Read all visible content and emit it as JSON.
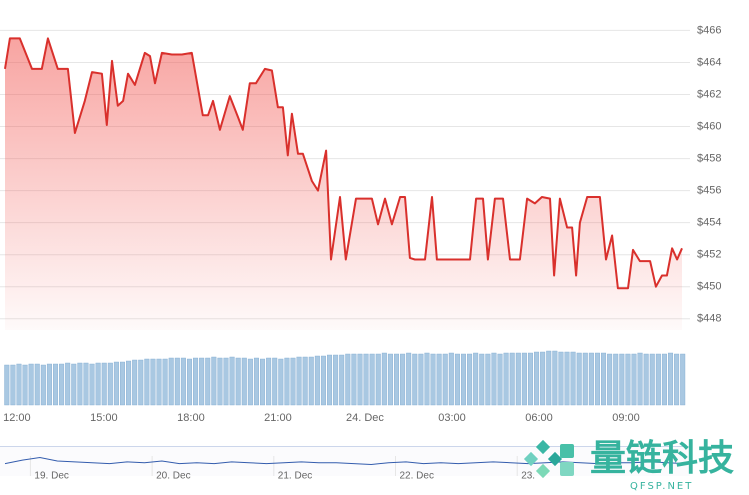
{
  "chart_data": [
    {
      "type": "line",
      "color": "#d9302c",
      "area": true,
      "x": [
        -0.41,
        -0.24,
        0.1,
        0.52,
        0.86,
        1.07,
        1.41,
        1.76,
        2,
        2.34,
        2.59,
        2.93,
        3.1,
        3.28,
        3.48,
        3.66,
        3.83,
        4.07,
        4.41,
        4.59,
        4.76,
        5,
        5.34,
        5.69,
        6.03,
        6.41,
        6.59,
        6.76,
        7,
        7.34,
        7.62,
        7.79,
        8.03,
        8.24,
        8.55,
        8.79,
        9,
        9.17,
        9.34,
        9.48,
        9.69,
        9.86,
        10.17,
        10.38,
        10.66,
        10.83,
        11.14,
        11.34,
        11.69,
        12.24,
        12.45,
        12.69,
        12.93,
        13.21,
        13.38,
        13.55,
        13.72,
        14.07,
        14.31,
        14.48,
        15.62,
        15.83,
        16.07,
        16.24,
        16.48,
        16.76,
        17,
        17.34,
        17.59,
        17.86,
        18.1,
        18.38,
        18.52,
        18.72,
        18.97,
        19.14,
        19.28,
        19.41,
        19.66,
        20.1,
        20.31,
        20.52,
        20.72,
        21.07,
        21.24,
        21.48,
        21.83,
        22.03,
        22.24,
        22.41,
        22.59,
        22.76,
        22.93
      ],
      "values": [
        463.6,
        465.5,
        465.5,
        463.6,
        463.6,
        465.5,
        463.6,
        463.6,
        459.6,
        461.6,
        463.4,
        463.3,
        460.1,
        464.1,
        461.3,
        461.6,
        463.3,
        462.6,
        464.6,
        464.4,
        462.7,
        464.6,
        464.5,
        464.5,
        464.6,
        460.7,
        460.7,
        461.6,
        459.8,
        461.9,
        460.6,
        459.8,
        462.7,
        462.7,
        463.6,
        463.5,
        461.2,
        461.2,
        458.2,
        460.8,
        458.3,
        458.3,
        456.6,
        456.0,
        458.5,
        451.7,
        455.6,
        451.7,
        455.5,
        455.5,
        453.9,
        455.5,
        453.9,
        455.6,
        455.6,
        451.8,
        451.7,
        451.7,
        455.6,
        451.7,
        451.7,
        455.5,
        455.5,
        451.7,
        455.5,
        455.5,
        451.7,
        451.7,
        455.5,
        455.2,
        455.6,
        455.5,
        450.7,
        455.5,
        453.7,
        453.7,
        450.7,
        454.0,
        455.6,
        455.6,
        451.7,
        453.2,
        449.9,
        449.9,
        452.3,
        451.6,
        451.6,
        450.0,
        450.7,
        450.7,
        452.4,
        451.7,
        452.4
      ],
      "xlim": [
        -0.41,
        22.93
      ],
      "ylim": [
        447.3,
        467.9
      ],
      "yticks": [
        {
          "value": 448,
          "label": "$448"
        },
        {
          "value": 450,
          "label": "$450"
        },
        {
          "value": 452,
          "label": "$452"
        },
        {
          "value": 454,
          "label": "$454"
        },
        {
          "value": 456,
          "label": "$456"
        },
        {
          "value": 458,
          "label": "$458"
        },
        {
          "value": 460,
          "label": "$460"
        },
        {
          "value": 462,
          "label": "$462"
        },
        {
          "value": 464,
          "label": "$464"
        },
        {
          "value": 466,
          "label": "$466"
        }
      ],
      "xticks": [
        {
          "value": 0,
          "label": "12:00"
        },
        {
          "value": 3,
          "label": "15:00"
        },
        {
          "value": 6,
          "label": "18:00"
        },
        {
          "value": 9,
          "label": "21:00"
        },
        {
          "value": 12,
          "label": "24. Dec"
        },
        {
          "value": 15,
          "label": "03:00"
        },
        {
          "value": 18,
          "label": "06:00"
        },
        {
          "value": 21,
          "label": "09:00"
        }
      ],
      "grid": true
    },
    {
      "type": "bar",
      "color": "#a9c8e2",
      "ylim": [
        0,
        60
      ],
      "values": [
        40,
        40,
        41,
        40,
        41,
        41,
        40,
        41,
        41,
        41,
        42,
        41,
        42,
        42,
        41,
        42,
        42,
        42,
        43,
        43,
        44,
        45,
        45,
        46,
        46,
        46,
        46,
        47,
        47,
        47,
        46,
        47,
        47,
        47,
        48,
        47,
        47,
        48,
        47,
        47,
        46,
        47,
        46,
        47,
        47,
        46,
        47,
        47,
        48,
        48,
        48,
        49,
        49,
        50,
        50,
        50,
        51,
        51,
        51,
        51,
        51,
        51,
        52,
        51,
        51,
        51,
        52,
        51,
        51,
        52,
        51,
        51,
        51,
        52,
        51,
        51,
        51,
        52,
        51,
        51,
        52,
        51,
        52,
        52,
        52,
        52,
        52,
        53,
        53,
        54,
        54,
        53,
        53,
        53,
        52,
        52,
        52,
        52,
        52,
        51,
        51,
        51,
        51,
        51,
        52,
        51,
        51,
        51,
        51,
        52,
        51,
        51
      ]
    },
    {
      "type": "navigator",
      "color": "#335cad",
      "ylim": [
        445,
        475
      ],
      "xlim": [
        -0.25,
        5.42
      ],
      "values": [
        457,
        461,
        464,
        460,
        459,
        458,
        457,
        459,
        458,
        460,
        457,
        458,
        457,
        459,
        458,
        457,
        458,
        459,
        458,
        458,
        457,
        456,
        458,
        459,
        457,
        458,
        457,
        458,
        459,
        458,
        457,
        458,
        459,
        458,
        457,
        458,
        458,
        459,
        458,
        457
      ],
      "xticks": [
        {
          "value": 0,
          "label": "19. Dec"
        },
        {
          "value": 1,
          "label": "20. Dec"
        },
        {
          "value": 2,
          "label": "21. Dec"
        },
        {
          "value": 3,
          "label": "22. Dec"
        },
        {
          "value": 4,
          "label": "23."
        }
      ]
    }
  ],
  "watermark": {
    "title": "量链科技",
    "subtitle": "QFSP.NET"
  }
}
